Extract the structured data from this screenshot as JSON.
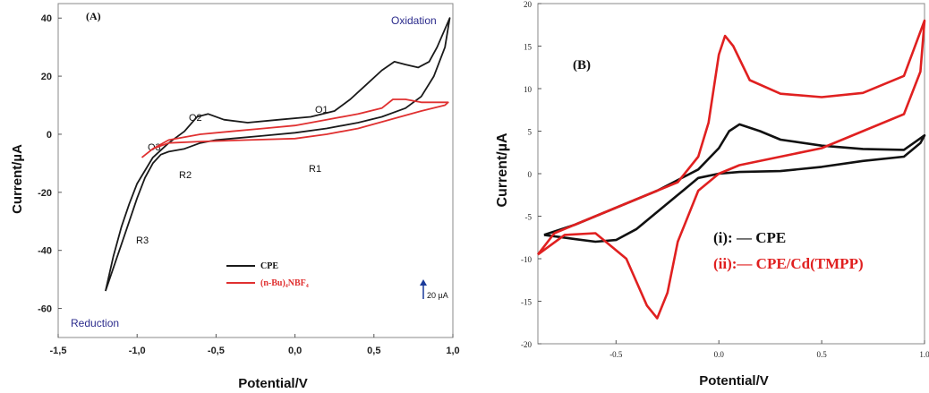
{
  "chart_data": [
    {
      "type": "line",
      "panel_label": "(A)",
      "xlabel": "Potential/V",
      "ylabel": "Current/µA",
      "xlim": [
        -1.5,
        1.0
      ],
      "ylim": [
        -70,
        45
      ],
      "x_ticks": [
        "-1,5",
        "-1,0",
        "-0,5",
        "0,0",
        "0,5",
        "1,0"
      ],
      "y_ticks": [
        "40",
        "20",
        "0",
        "-20",
        "-40",
        "-60"
      ],
      "annotations": [
        "Oxidation",
        "Reduction",
        "O1",
        "O2",
        "O3",
        "R1",
        "R2",
        "R3"
      ],
      "scale_bar": "20 µA",
      "series": [
        {
          "name": "CPE",
          "color": "#1a1a1a",
          "points": [
            [
              -1.2,
              -54
            ],
            [
              -1.15,
              -46
            ],
            [
              -1.1,
              -38
            ],
            [
              -1.05,
              -30
            ],
            [
              -1.0,
              -22
            ],
            [
              -0.95,
              -15
            ],
            [
              -0.9,
              -10
            ],
            [
              -0.85,
              -7
            ],
            [
              -0.8,
              -6
            ],
            [
              -0.7,
              -5
            ],
            [
              -0.6,
              -3
            ],
            [
              -0.5,
              -2
            ],
            [
              -0.4,
              -1.5
            ],
            [
              -0.2,
              -0.5
            ],
            [
              0.0,
              0.5
            ],
            [
              0.2,
              2
            ],
            [
              0.4,
              4
            ],
            [
              0.55,
              6
            ],
            [
              0.7,
              9
            ],
            [
              0.8,
              13
            ],
            [
              0.88,
              20
            ],
            [
              0.95,
              30
            ],
            [
              0.98,
              40
            ],
            [
              0.9,
              30
            ],
            [
              0.85,
              25
            ],
            [
              0.78,
              23
            ],
            [
              0.7,
              24
            ],
            [
              0.63,
              25
            ],
            [
              0.55,
              22
            ],
            [
              0.45,
              17
            ],
            [
              0.35,
              12
            ],
            [
              0.25,
              8
            ],
            [
              0.1,
              6
            ],
            [
              -0.1,
              5
            ],
            [
              -0.3,
              4
            ],
            [
              -0.45,
              5
            ],
            [
              -0.55,
              7
            ],
            [
              -0.62,
              6
            ],
            [
              -0.7,
              1
            ],
            [
              -0.8,
              -3
            ],
            [
              -0.9,
              -8
            ],
            [
              -1.0,
              -17
            ],
            [
              -1.05,
              -24
            ],
            [
              -1.1,
              -32
            ],
            [
              -1.15,
              -42
            ],
            [
              -1.2,
              -54
            ]
          ]
        },
        {
          "name": "(n-Bu)₄NBF₄",
          "color": "#e03030",
          "points": [
            [
              -0.97,
              -8
            ],
            [
              -0.9,
              -5
            ],
            [
              -0.8,
              -3
            ],
            [
              -0.6,
              -2.5
            ],
            [
              -0.3,
              -2
            ],
            [
              0.0,
              -1.5
            ],
            [
              0.2,
              0
            ],
            [
              0.4,
              2
            ],
            [
              0.6,
              5
            ],
            [
              0.8,
              8
            ],
            [
              0.95,
              10
            ],
            [
              0.97,
              11
            ],
            [
              0.9,
              11
            ],
            [
              0.8,
              11
            ],
            [
              0.7,
              12
            ],
            [
              0.62,
              12
            ],
            [
              0.55,
              9
            ],
            [
              0.4,
              7
            ],
            [
              0.2,
              5
            ],
            [
              0.0,
              3
            ],
            [
              -0.2,
              2
            ],
            [
              -0.4,
              1
            ],
            [
              -0.6,
              0
            ],
            [
              -0.8,
              -2
            ],
            [
              -0.9,
              -5
            ],
            [
              -0.97,
              -8
            ]
          ]
        }
      ]
    },
    {
      "type": "line",
      "panel_label": "(B)",
      "xlabel": "Potential/V",
      "ylabel": "Current/µA",
      "xlim": [
        -0.88,
        1.0
      ],
      "ylim": [
        -20,
        20
      ],
      "x_ticks": [
        "-0.5",
        "0.0",
        "0.5",
        "1.0"
      ],
      "y_ticks": [
        "20",
        "15",
        "10",
        "5",
        "0",
        "-5",
        "-10",
        "-15",
        "-20"
      ],
      "legend": [
        "(i): — CPE",
        "(ii):— CPE/Cd(TMPP)"
      ],
      "series": [
        {
          "name": "(i): CPE",
          "color": "#111111",
          "points": [
            [
              -0.85,
              -7.2
            ],
            [
              -0.7,
              -6
            ],
            [
              -0.5,
              -4
            ],
            [
              -0.3,
              -2
            ],
            [
              -0.1,
              0.5
            ],
            [
              0.0,
              3
            ],
            [
              0.05,
              5
            ],
            [
              0.1,
              5.8
            ],
            [
              0.2,
              5
            ],
            [
              0.3,
              4
            ],
            [
              0.5,
              3.3
            ],
            [
              0.7,
              2.9
            ],
            [
              0.9,
              2.8
            ],
            [
              1.0,
              4.5
            ],
            [
              0.98,
              3.6
            ],
            [
              0.9,
              2
            ],
            [
              0.7,
              1.5
            ],
            [
              0.5,
              0.8
            ],
            [
              0.3,
              0.3
            ],
            [
              0.1,
              0.2
            ],
            [
              0.0,
              0
            ],
            [
              -0.1,
              -0.5
            ],
            [
              -0.2,
              -2.5
            ],
            [
              -0.3,
              -4.5
            ],
            [
              -0.4,
              -6.5
            ],
            [
              -0.5,
              -7.8
            ],
            [
              -0.6,
              -8
            ],
            [
              -0.7,
              -7.7
            ],
            [
              -0.85,
              -7.2
            ]
          ]
        },
        {
          "name": "(ii): CPE/Cd(TMPP)",
          "color": "#e02020",
          "points": [
            [
              -0.88,
              -9.5
            ],
            [
              -0.8,
              -7
            ],
            [
              -0.6,
              -5
            ],
            [
              -0.4,
              -3
            ],
            [
              -0.2,
              -1
            ],
            [
              -0.1,
              2
            ],
            [
              -0.05,
              6
            ],
            [
              0.0,
              14
            ],
            [
              0.03,
              16.2
            ],
            [
              0.07,
              15
            ],
            [
              0.15,
              11
            ],
            [
              0.3,
              9.4
            ],
            [
              0.5,
              9
            ],
            [
              0.7,
              9.5
            ],
            [
              0.9,
              11.5
            ],
            [
              1.0,
              18
            ],
            [
              0.98,
              12
            ],
            [
              0.9,
              7
            ],
            [
              0.7,
              5
            ],
            [
              0.5,
              3
            ],
            [
              0.3,
              2
            ],
            [
              0.1,
              1
            ],
            [
              0.0,
              0
            ],
            [
              -0.1,
              -2
            ],
            [
              -0.2,
              -8
            ],
            [
              -0.25,
              -14
            ],
            [
              -0.3,
              -17
            ],
            [
              -0.35,
              -15.5
            ],
            [
              -0.45,
              -10
            ],
            [
              -0.6,
              -7
            ],
            [
              -0.75,
              -7.2
            ],
            [
              -0.88,
              -9.5
            ]
          ]
        }
      ]
    }
  ]
}
